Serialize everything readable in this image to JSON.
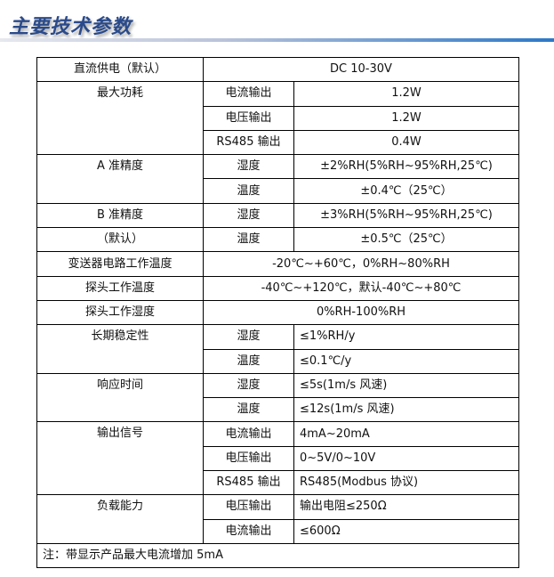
{
  "header": {
    "title": "主要技术参数"
  },
  "rows": {
    "power_supply": {
      "label": "直流供电（默认）",
      "value": "DC 10-30V"
    },
    "max_power": {
      "label": "最大功耗",
      "items": [
        {
          "k": "电流输出",
          "v": "1.2W"
        },
        {
          "k": "电压输出",
          "v": "1.2W"
        },
        {
          "k": "RS485 输出",
          "v": "0.4W"
        }
      ]
    },
    "a_accuracy": {
      "label": "A 准精度",
      "items": [
        {
          "k": "湿度",
          "v": "±2%RH(5%RH~95%RH,25℃)"
        },
        {
          "k": "温度",
          "v": "±0.4℃（25℃）"
        }
      ]
    },
    "b_accuracy": {
      "label": "B 准精度",
      "label2": "（默认）",
      "items": [
        {
          "k": "湿度",
          "v": "±3%RH(5%RH~95%RH,25℃)"
        },
        {
          "k": "温度",
          "v": "±0.5℃（25℃）"
        }
      ]
    },
    "circuit_temp": {
      "label": "变送器电路工作温度",
      "value": "-20℃~+60℃，0%RH~80%RH"
    },
    "probe_temp": {
      "label": "探头工作温度",
      "value": "-40℃~+120℃，默认-40℃~+80℃"
    },
    "probe_humidity": {
      "label": "探头工作湿度",
      "value": "0%RH-100%RH"
    },
    "stability": {
      "label": "长期稳定性",
      "items": [
        {
          "k": "湿度",
          "v": "≤1%RH/y"
        },
        {
          "k": "温度",
          "v": "≤0.1℃/y"
        }
      ]
    },
    "response": {
      "label": "响应时间",
      "items": [
        {
          "k": "湿度",
          "v": "≤5s(1m/s 风速)"
        },
        {
          "k": "温度",
          "v": "≤12s(1m/s 风速)"
        }
      ]
    },
    "output": {
      "label": "输出信号",
      "items": [
        {
          "k": "电流输出",
          "v": "4mA~20mA"
        },
        {
          "k": "电压输出",
          "v": "0~5V/0~10V"
        },
        {
          "k": "RS485 输出",
          "v": "RS485(Modbus 协议)"
        }
      ]
    },
    "load": {
      "label": "负载能力",
      "items": [
        {
          "k": "电压输出",
          "v": "输出电阻≤250Ω"
        },
        {
          "k": "电流输出",
          "v": "≤600Ω"
        }
      ]
    }
  },
  "note": "注：带显示产品最大电流增加 5mA"
}
